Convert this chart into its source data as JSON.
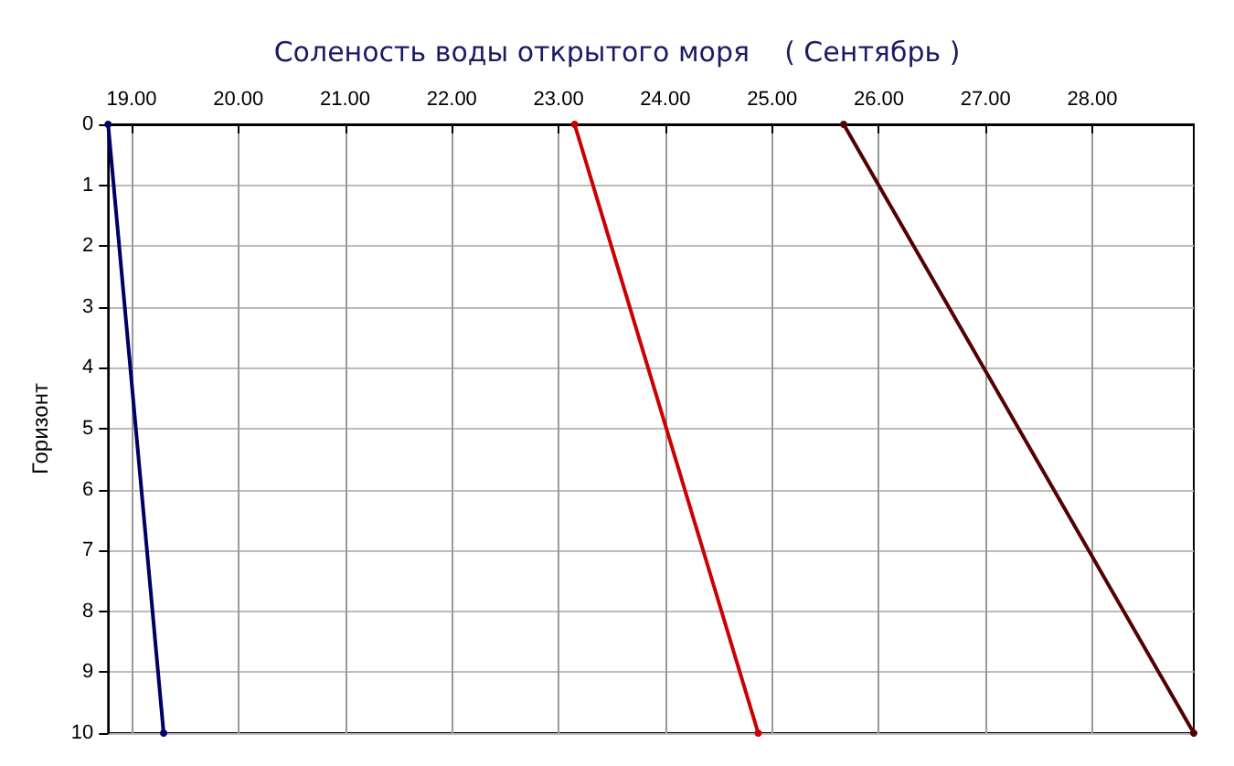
{
  "chart_data": {
    "type": "line",
    "title": "Соленость воды открытого моря    ( Сентябрь )",
    "ylabel": "Горизонт",
    "series": [
      {
        "color": "#000066",
        "x": [
          18.78,
          19.3
        ],
        "values": [
          0,
          10
        ]
      },
      {
        "color": "#cc0000",
        "x": [
          23.15,
          24.87
        ],
        "values": [
          0,
          10
        ]
      },
      {
        "color": "#550000",
        "x": [
          25.67,
          28.95
        ],
        "values": [
          0,
          10
        ]
      }
    ],
    "xlim": [
      18.78,
      28.95
    ],
    "xticks": [
      {
        "value": 19,
        "label": "19.00"
      },
      {
        "value": 20,
        "label": "20.00"
      },
      {
        "value": 21,
        "label": "21.00"
      },
      {
        "value": 22,
        "label": "22.00"
      },
      {
        "value": 23,
        "label": "23.00"
      },
      {
        "value": 24,
        "label": "24.00"
      },
      {
        "value": 25,
        "label": "25.00"
      },
      {
        "value": 26,
        "label": "26.00"
      },
      {
        "value": 27,
        "label": "27.00"
      },
      {
        "value": 28,
        "label": "28.00"
      }
    ],
    "ylim": [
      10,
      0
    ],
    "yticks": [
      0,
      1,
      2,
      3,
      4,
      5,
      6,
      7,
      8,
      9,
      10
    ],
    "grid": true,
    "marker": "circle",
    "line_style": "solid"
  }
}
